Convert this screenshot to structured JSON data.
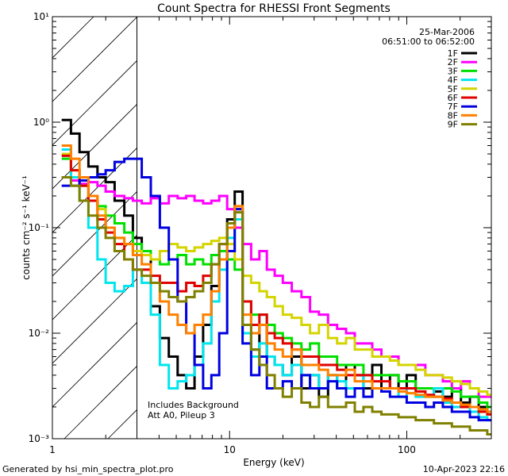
{
  "chart_data": {
    "type": "line",
    "title": "Count Spectra for RHESSI Front Segments",
    "xlabel": "Energy (keV)",
    "ylabel": "counts cm⁻² s⁻¹ keV⁻¹",
    "xscale": "log",
    "yscale": "log",
    "xlim": [
      1,
      300
    ],
    "ylim": [
      0.001,
      10
    ],
    "x_ticks": [
      {
        "value": 1,
        "label": "1"
      },
      {
        "value": 10,
        "label": "10"
      },
      {
        "value": 100,
        "label": "100"
      }
    ],
    "y_ticks": [
      {
        "value": 0.001,
        "label": "10⁻³"
      },
      {
        "value": 0.01,
        "label": "10⁻²"
      },
      {
        "value": 0.1,
        "label": "10⁻¹"
      },
      {
        "value": 1,
        "label": "10⁰"
      },
      {
        "value": 10,
        "label": "10¹"
      }
    ],
    "date": "25-Mar-2006",
    "time_range": "06:51:00 to 06:52:00",
    "annotation_line1": "Includes Background",
    "annotation_line2": "Att A0, Pileup 3",
    "hatched_region_upper_energy_keV": 3,
    "legend_position": "top-right",
    "series": [
      {
        "name": "1F",
        "color": "#000000",
        "x": [
          1.2,
          1.35,
          1.5,
          1.7,
          1.9,
          2.1,
          2.4,
          2.7,
          3,
          3.4,
          3.8,
          4.3,
          4.8,
          5.4,
          6,
          6.7,
          7.5,
          8.3,
          9.2,
          10.2,
          11.2,
          12.5,
          14,
          15.5,
          17,
          19,
          21,
          24,
          27,
          30,
          34,
          38,
          43,
          48,
          54,
          60,
          68,
          76,
          85,
          95,
          105,
          120,
          135,
          150,
          170,
          190,
          215,
          240,
          270,
          300
        ],
        "y": [
          1.05,
          0.78,
          0.52,
          0.38,
          0.3,
          0.27,
          0.18,
          0.13,
          0.08,
          0.06,
          0.018,
          0.009,
          0.006,
          0.004,
          0.003,
          0.006,
          0.012,
          0.028,
          0.05,
          0.12,
          0.22,
          0.01,
          0.007,
          0.012,
          0.006,
          0.005,
          0.004,
          0.006,
          0.003,
          0.004,
          0.0025,
          0.004,
          0.003,
          0.005,
          0.004,
          0.003,
          0.005,
          0.003,
          0.004,
          0.003,
          0.004,
          0.003,
          0.003,
          0.0028,
          0.0025,
          0.003,
          0.0022,
          0.0025,
          0.002,
          0.0018
        ]
      },
      {
        "name": "2F",
        "color": "#ff00ff",
        "x": [
          1.2,
          1.35,
          1.5,
          1.7,
          1.9,
          2.1,
          2.4,
          2.7,
          3,
          3.4,
          3.8,
          4.3,
          4.8,
          5.4,
          6,
          6.7,
          7.5,
          8.3,
          9.2,
          10.2,
          11.2,
          12.5,
          14,
          15.5,
          17,
          19,
          21,
          24,
          27,
          30,
          34,
          38,
          43,
          48,
          54,
          60,
          68,
          76,
          85,
          95,
          105,
          120,
          135,
          150,
          170,
          190,
          215,
          240,
          270,
          300
        ],
        "y": [
          0.3,
          0.28,
          0.26,
          0.27,
          0.25,
          0.22,
          0.2,
          0.19,
          0.18,
          0.17,
          0.19,
          0.17,
          0.2,
          0.19,
          0.2,
          0.18,
          0.17,
          0.18,
          0.2,
          0.15,
          0.1,
          0.07,
          0.05,
          0.06,
          0.04,
          0.035,
          0.03,
          0.025,
          0.022,
          0.016,
          0.015,
          0.012,
          0.011,
          0.01,
          0.008,
          0.008,
          0.007,
          0.006,
          0.006,
          0.005,
          0.005,
          0.005,
          0.004,
          0.004,
          0.0035,
          0.003,
          0.0035,
          0.003,
          0.0025,
          0.0025
        ]
      },
      {
        "name": "3F",
        "color": "#00e000",
        "x": [
          1.2,
          1.35,
          1.5,
          1.7,
          1.9,
          2.1,
          2.4,
          2.7,
          3,
          3.4,
          3.8,
          4.3,
          4.8,
          5.4,
          6,
          6.7,
          7.5,
          8.3,
          9.2,
          10.2,
          11.2,
          12.5,
          14,
          15.5,
          17,
          19,
          21,
          24,
          27,
          30,
          34,
          38,
          43,
          48,
          54,
          60,
          68,
          76,
          85,
          95,
          105,
          120,
          135,
          150,
          170,
          190,
          215,
          240,
          270,
          300
        ],
        "y": [
          0.45,
          0.3,
          0.25,
          0.2,
          0.16,
          0.13,
          0.11,
          0.09,
          0.07,
          0.06,
          0.05,
          0.045,
          0.05,
          0.055,
          0.045,
          0.05,
          0.045,
          0.055,
          0.06,
          0.05,
          0.04,
          0.02,
          0.015,
          0.015,
          0.012,
          0.01,
          0.009,
          0.008,
          0.007,
          0.008,
          0.006,
          0.006,
          0.005,
          0.005,
          0.005,
          0.004,
          0.004,
          0.004,
          0.004,
          0.0035,
          0.0035,
          0.003,
          0.003,
          0.003,
          0.003,
          0.0028,
          0.0025,
          0.0025,
          0.0022,
          0.002
        ]
      },
      {
        "name": "4F",
        "color": "#00e5ee",
        "x": [
          1.2,
          1.35,
          1.5,
          1.7,
          1.9,
          2.1,
          2.4,
          2.7,
          3,
          3.4,
          3.8,
          4.3,
          4.8,
          5.4,
          6,
          6.7,
          7.5,
          8.3,
          9.2,
          10.2,
          11.2,
          12.5,
          14,
          15.5,
          17,
          19,
          21,
          24,
          27,
          30,
          34,
          38,
          43,
          48,
          54,
          60,
          68,
          76,
          85,
          95,
          105,
          120,
          135,
          150,
          170,
          190,
          215,
          240,
          270,
          300
        ],
        "y": [
          0.55,
          0.3,
          0.18,
          0.1,
          0.05,
          0.03,
          0.025,
          0.028,
          0.04,
          0.03,
          0.015,
          0.005,
          0.003,
          0.0035,
          0.004,
          0.005,
          0.008,
          0.02,
          0.04,
          0.08,
          0.12,
          0.01,
          0.006,
          0.008,
          0.006,
          0.005,
          0.004,
          0.005,
          0.004,
          0.004,
          0.003,
          0.004,
          0.0035,
          0.003,
          0.003,
          0.004,
          0.003,
          0.003,
          0.003,
          0.0025,
          0.003,
          0.0025,
          0.0025,
          0.003,
          0.0022,
          0.002,
          0.002,
          0.0018,
          0.0016,
          0.0015
        ]
      },
      {
        "name": "5F",
        "color": "#d4d400",
        "x": [
          1.2,
          1.35,
          1.5,
          1.7,
          1.9,
          2.1,
          2.4,
          2.7,
          3,
          3.4,
          3.8,
          4.3,
          4.8,
          5.4,
          6,
          6.7,
          7.5,
          8.3,
          9.2,
          10.2,
          11.2,
          12.5,
          14,
          15.5,
          17,
          19,
          21,
          24,
          27,
          30,
          34,
          38,
          43,
          48,
          54,
          60,
          68,
          76,
          85,
          95,
          105,
          120,
          135,
          150,
          170,
          190,
          215,
          240,
          270,
          300
        ],
        "y": [
          0.5,
          0.35,
          0.25,
          0.2,
          0.15,
          0.1,
          0.08,
          0.07,
          0.06,
          0.055,
          0.05,
          0.06,
          0.07,
          0.065,
          0.06,
          0.065,
          0.07,
          0.075,
          0.08,
          0.07,
          0.05,
          0.035,
          0.03,
          0.025,
          0.022,
          0.018,
          0.015,
          0.014,
          0.012,
          0.01,
          0.012,
          0.009,
          0.008,
          0.009,
          0.007,
          0.007,
          0.006,
          0.006,
          0.0055,
          0.005,
          0.005,
          0.0045,
          0.004,
          0.004,
          0.0038,
          0.0035,
          0.0033,
          0.003,
          0.0028,
          0.0026
        ]
      },
      {
        "name": "6F",
        "color": "#e00000",
        "x": [
          1.2,
          1.35,
          1.5,
          1.7,
          1.9,
          2.1,
          2.4,
          2.7,
          3,
          3.4,
          3.8,
          4.3,
          4.8,
          5.4,
          6,
          6.7,
          7.5,
          8.3,
          9.2,
          10.2,
          11.2,
          12.5,
          14,
          15.5,
          17,
          19,
          21,
          24,
          27,
          30,
          34,
          38,
          43,
          48,
          54,
          60,
          68,
          76,
          85,
          95,
          105,
          120,
          135,
          150,
          170,
          190,
          215,
          240,
          270,
          300
        ],
        "y": [
          0.48,
          0.35,
          0.25,
          0.18,
          0.12,
          0.09,
          0.07,
          0.05,
          0.04,
          0.04,
          0.035,
          0.03,
          0.03,
          0.025,
          0.03,
          0.028,
          0.035,
          0.045,
          0.07,
          0.1,
          0.15,
          0.02,
          0.012,
          0.015,
          0.01,
          0.009,
          0.008,
          0.007,
          0.006,
          0.006,
          0.005,
          0.005,
          0.0045,
          0.004,
          0.004,
          0.004,
          0.0035,
          0.0035,
          0.003,
          0.003,
          0.003,
          0.0028,
          0.0026,
          0.0025,
          0.0024,
          0.0022,
          0.002,
          0.002,
          0.0018,
          0.0017
        ]
      },
      {
        "name": "7F",
        "color": "#0000e0",
        "x": [
          1.2,
          1.35,
          1.5,
          1.7,
          1.9,
          2.1,
          2.4,
          2.7,
          3,
          3.4,
          3.8,
          4.3,
          4.8,
          5.4,
          6,
          6.7,
          7.5,
          8.3,
          9.2,
          10.2,
          11.2,
          12.5,
          14,
          15.5,
          17,
          19,
          21,
          24,
          27,
          30,
          34,
          38,
          43,
          48,
          54,
          60,
          68,
          76,
          85,
          95,
          105,
          120,
          135,
          150,
          170,
          190,
          215,
          240,
          270,
          300
        ],
        "y": [
          0.25,
          0.25,
          0.28,
          0.3,
          0.32,
          0.35,
          0.42,
          0.45,
          0.45,
          0.3,
          0.2,
          0.1,
          0.05,
          0.02,
          0.01,
          0.005,
          0.003,
          0.004,
          0.01,
          0.06,
          0.15,
          0.008,
          0.004,
          0.006,
          0.003,
          0.003,
          0.0035,
          0.003,
          0.004,
          0.003,
          0.003,
          0.0035,
          0.003,
          0.0025,
          0.003,
          0.0025,
          0.003,
          0.0028,
          0.0025,
          0.0025,
          0.0022,
          0.0022,
          0.002,
          0.0022,
          0.002,
          0.0018,
          0.0018,
          0.0016,
          0.0015,
          0.0015
        ]
      },
      {
        "name": "8F",
        "color": "#ff8000",
        "x": [
          1.2,
          1.35,
          1.5,
          1.7,
          1.9,
          2.1,
          2.4,
          2.7,
          3,
          3.4,
          3.8,
          4.3,
          4.8,
          5.4,
          6,
          6.7,
          7.5,
          8.3,
          9.2,
          10.2,
          11.2,
          12.5,
          14,
          15.5,
          17,
          19,
          21,
          24,
          27,
          30,
          34,
          38,
          43,
          48,
          54,
          60,
          68,
          76,
          85,
          95,
          105,
          120,
          135,
          150,
          170,
          190,
          215,
          240,
          270,
          300
        ],
        "y": [
          0.6,
          0.45,
          0.3,
          0.2,
          0.13,
          0.1,
          0.08,
          0.07,
          0.055,
          0.045,
          0.03,
          0.02,
          0.015,
          0.012,
          0.01,
          0.012,
          0.015,
          0.025,
          0.05,
          0.1,
          0.16,
          0.015,
          0.01,
          0.012,
          0.008,
          0.007,
          0.006,
          0.007,
          0.005,
          0.005,
          0.0045,
          0.004,
          0.004,
          0.0045,
          0.0035,
          0.0035,
          0.003,
          0.003,
          0.003,
          0.0028,
          0.0027,
          0.0026,
          0.0025,
          0.0025,
          0.0023,
          0.0022,
          0.0021,
          0.002,
          0.0019,
          0.0018
        ]
      },
      {
        "name": "9F",
        "color": "#808000",
        "x": [
          1.2,
          1.35,
          1.5,
          1.7,
          1.9,
          2.1,
          2.4,
          2.7,
          3,
          3.4,
          3.8,
          4.3,
          4.8,
          5.4,
          6,
          6.7,
          7.5,
          8.3,
          9.2,
          10.2,
          11.2,
          12.5,
          14,
          15.5,
          17,
          19,
          21,
          24,
          27,
          30,
          34,
          38,
          43,
          48,
          54,
          60,
          68,
          76,
          85,
          95,
          105,
          120,
          135,
          150,
          170,
          190,
          215,
          240,
          270,
          300
        ],
        "y": [
          0.3,
          0.25,
          0.18,
          0.13,
          0.1,
          0.08,
          0.06,
          0.05,
          0.04,
          0.035,
          0.03,
          0.025,
          0.022,
          0.02,
          0.022,
          0.025,
          0.03,
          0.045,
          0.07,
          0.11,
          0.14,
          0.012,
          0.007,
          0.005,
          0.004,
          0.003,
          0.0025,
          0.003,
          0.0022,
          0.002,
          0.0025,
          0.002,
          0.002,
          0.0022,
          0.0018,
          0.002,
          0.0018,
          0.0017,
          0.0017,
          0.0016,
          0.0016,
          0.0015,
          0.0015,
          0.0014,
          0.0014,
          0.0013,
          0.0013,
          0.0012,
          0.0012,
          0.0011
        ]
      }
    ]
  },
  "footer": {
    "generated_by": "Generated by hsi_min_spectra_plot.pro",
    "timestamp": "10-Apr-2023 22:16"
  }
}
